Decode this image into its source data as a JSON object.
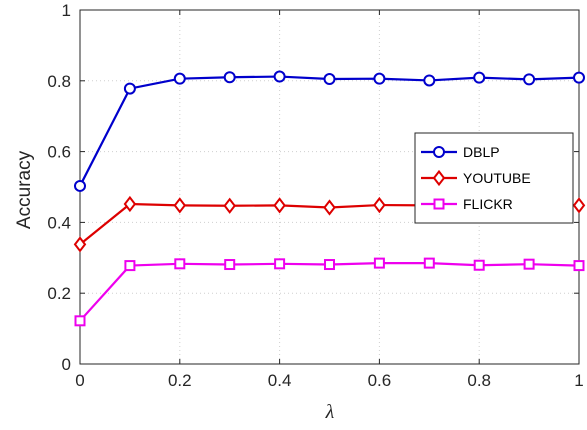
{
  "chart_data": {
    "type": "line",
    "title": "",
    "xlabel": "λ",
    "ylabel": "Accuracy",
    "xlim": [
      0,
      1
    ],
    "ylim": [
      0,
      1
    ],
    "grid": true,
    "legend_position": "right",
    "x": [
      0,
      0.1,
      0.2,
      0.3,
      0.4,
      0.5,
      0.6,
      0.7,
      0.8,
      0.9,
      1
    ],
    "x_ticks": [
      "0",
      "0.2",
      "0.4",
      "0.6",
      "0.8",
      "1"
    ],
    "y_ticks": [
      "0",
      "0.2",
      "0.4",
      "0.6",
      "0.8",
      "1"
    ],
    "series": [
      {
        "name": "DBLP",
        "color": "#0000cc",
        "marker": "circle",
        "values": [
          0.503,
          0.778,
          0.806,
          0.81,
          0.812,
          0.805,
          0.806,
          0.801,
          0.809,
          0.804,
          0.809
        ]
      },
      {
        "name": "YOUTUBE",
        "color": "#dd0000",
        "marker": "diamond",
        "values": [
          0.338,
          0.452,
          0.448,
          0.447,
          0.448,
          0.442,
          0.449,
          0.448,
          0.45,
          0.452,
          0.448
        ]
      },
      {
        "name": "FLICKR",
        "color": "#ee00ee",
        "marker": "square",
        "values": [
          0.122,
          0.278,
          0.283,
          0.281,
          0.283,
          0.281,
          0.285,
          0.285,
          0.279,
          0.282,
          0.278
        ]
      }
    ]
  }
}
